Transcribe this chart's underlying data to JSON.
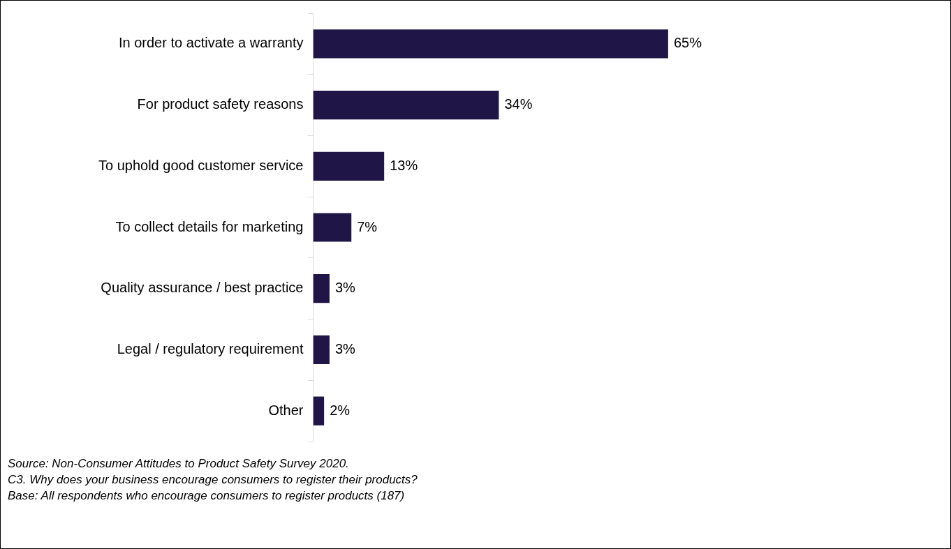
{
  "chart_data": {
    "type": "bar",
    "orientation": "horizontal",
    "categories": [
      "In order to activate a warranty",
      "For product safety reasons",
      "To uphold good customer service",
      "To collect details for marketing",
      "Quality assurance / best practice",
      "Legal / regulatory requirement",
      "Other"
    ],
    "values": [
      65,
      34,
      13,
      7,
      3,
      3,
      2
    ],
    "value_labels": [
      "65%",
      "34%",
      "13%",
      "7%",
      "3%",
      "3%",
      "2%"
    ],
    "color": "#1f1647",
    "tick_labels": "y",
    "annotations": [
      "Source: Non-Consumer Attitudes to Product Safety Survey 2020.",
      "C3. Why does your business encourage consumers to register their products?",
      "Base: All respondents who  encourage consumers to register products (187)"
    ]
  }
}
